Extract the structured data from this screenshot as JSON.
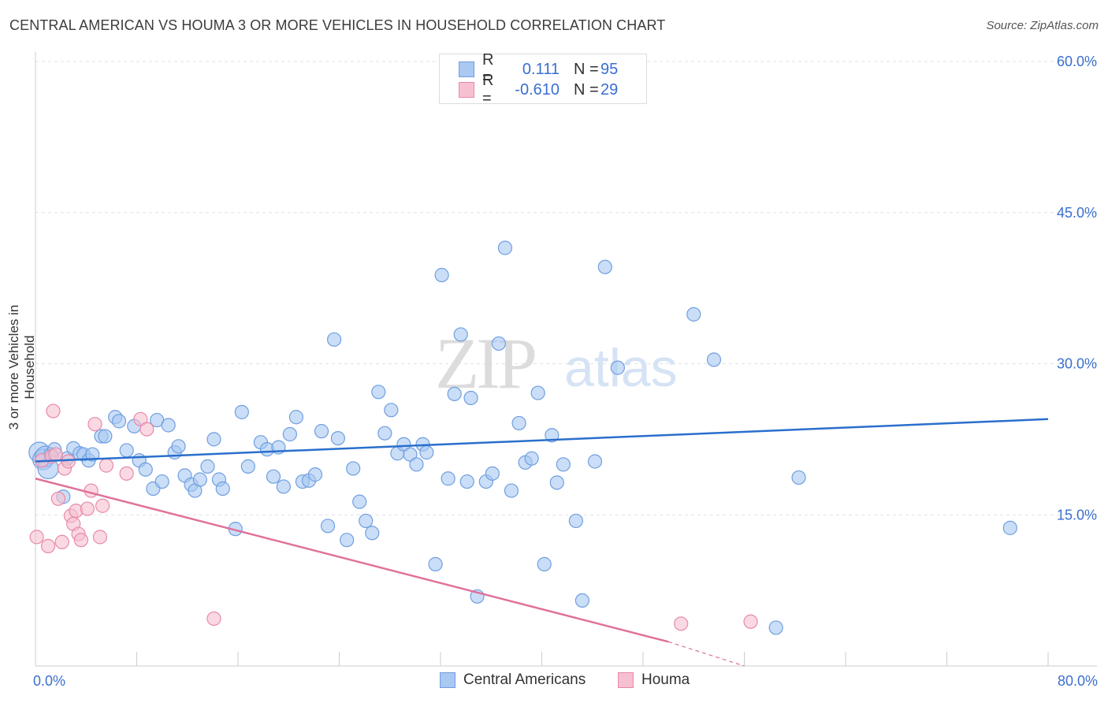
{
  "title": "CENTRAL AMERICAN VS HOUMA 3 OR MORE VEHICLES IN HOUSEHOLD CORRELATION CHART",
  "source": "Source: ZipAtlas.com",
  "watermark": {
    "zip": "ZIP",
    "atlas": "atlas"
  },
  "legend_top": {
    "rows": [
      {
        "r_label": "R =",
        "r_value": "0.111",
        "n_label": "N =",
        "n_value": "95",
        "color": "#a9c8f2",
        "border": "#6f9fe0"
      },
      {
        "r_label": "R =",
        "r_value": "-0.610",
        "n_label": "N =",
        "n_value": "29",
        "color": "#f7c0d0",
        "border": "#e889a8"
      }
    ]
  },
  "legend_bottom": {
    "items": [
      {
        "label": "Central Americans",
        "color": "#a9c8f2",
        "border": "#6f9fe0"
      },
      {
        "label": "Houma",
        "color": "#f7c0d0",
        "border": "#e889a8"
      }
    ]
  },
  "chart_data": {
    "type": "scatter",
    "title": "CENTRAL AMERICAN VS HOUMA 3 OR MORE VEHICLES IN HOUSEHOLD CORRELATION CHART",
    "xlabel": "",
    "ylabel": "3 or more Vehicles in Household",
    "xlim": [
      0,
      80
    ],
    "ylim": [
      0,
      60
    ],
    "x_tick_labels": [
      "0.0%",
      "80.0%"
    ],
    "y_tick_labels": [
      "15.0%",
      "30.0%",
      "45.0%",
      "60.0%"
    ],
    "y_ticks": [
      15,
      30,
      45,
      60
    ],
    "grid": true,
    "colors": {
      "blue": "#6f9fe0",
      "blue_fill": "#a9c8f2",
      "blue_line": "#2a6fcc",
      "pink": "#e889a8",
      "pink_fill": "#f7c0d0",
      "pink_line": "#e0709a",
      "tick_label": "#3a6fcf"
    },
    "series": [
      {
        "name": "Central Americans",
        "points": [
          [
            0.3,
            21.2
          ],
          [
            0.6,
            20.5
          ],
          [
            0.8,
            20.8
          ],
          [
            1.0,
            19.6
          ],
          [
            1.2,
            21.0
          ],
          [
            1.5,
            21.5
          ],
          [
            2.2,
            16.8
          ],
          [
            2.5,
            20.6
          ],
          [
            3.0,
            21.6
          ],
          [
            3.5,
            21.1
          ],
          [
            3.8,
            21.0
          ],
          [
            4.2,
            20.4
          ],
          [
            4.5,
            21.0
          ],
          [
            5.2,
            22.8
          ],
          [
            5.5,
            22.8
          ],
          [
            6.3,
            24.7
          ],
          [
            6.6,
            24.3
          ],
          [
            7.2,
            21.4
          ],
          [
            7.8,
            23.8
          ],
          [
            8.2,
            20.4
          ],
          [
            8.7,
            19.5
          ],
          [
            9.3,
            17.6
          ],
          [
            9.6,
            24.4
          ],
          [
            10.0,
            18.3
          ],
          [
            10.5,
            23.9
          ],
          [
            11.0,
            21.2
          ],
          [
            11.3,
            21.8
          ],
          [
            11.8,
            18.9
          ],
          [
            12.3,
            18.0
          ],
          [
            12.6,
            17.4
          ],
          [
            13.0,
            18.5
          ],
          [
            13.6,
            19.8
          ],
          [
            14.1,
            22.5
          ],
          [
            14.5,
            18.5
          ],
          [
            14.8,
            17.6
          ],
          [
            15.8,
            13.6
          ],
          [
            16.3,
            25.2
          ],
          [
            16.8,
            19.8
          ],
          [
            17.8,
            22.2
          ],
          [
            18.3,
            21.5
          ],
          [
            18.8,
            18.8
          ],
          [
            19.2,
            21.7
          ],
          [
            19.6,
            17.8
          ],
          [
            20.1,
            23.0
          ],
          [
            20.6,
            24.7
          ],
          [
            21.1,
            18.3
          ],
          [
            21.6,
            18.4
          ],
          [
            22.1,
            19.0
          ],
          [
            22.6,
            23.3
          ],
          [
            23.1,
            13.9
          ],
          [
            23.6,
            32.4
          ],
          [
            23.9,
            22.6
          ],
          [
            24.6,
            12.5
          ],
          [
            25.1,
            19.6
          ],
          [
            25.6,
            16.3
          ],
          [
            26.1,
            14.4
          ],
          [
            26.6,
            13.2
          ],
          [
            27.1,
            27.2
          ],
          [
            27.6,
            23.1
          ],
          [
            28.1,
            25.4
          ],
          [
            28.6,
            21.1
          ],
          [
            29.1,
            22.0
          ],
          [
            29.6,
            21.0
          ],
          [
            30.1,
            20.0
          ],
          [
            30.6,
            22.0
          ],
          [
            30.9,
            21.2
          ],
          [
            31.6,
            10.1
          ],
          [
            32.1,
            38.8
          ],
          [
            32.6,
            18.6
          ],
          [
            33.1,
            27.0
          ],
          [
            33.6,
            32.9
          ],
          [
            34.1,
            18.3
          ],
          [
            34.4,
            26.6
          ],
          [
            34.9,
            6.9
          ],
          [
            35.6,
            18.3
          ],
          [
            36.1,
            19.1
          ],
          [
            36.6,
            32.0
          ],
          [
            37.1,
            41.5
          ],
          [
            37.6,
            17.4
          ],
          [
            38.2,
            24.1
          ],
          [
            38.7,
            20.2
          ],
          [
            39.2,
            20.6
          ],
          [
            39.7,
            27.1
          ],
          [
            40.2,
            10.1
          ],
          [
            40.8,
            22.9
          ],
          [
            41.2,
            18.2
          ],
          [
            41.7,
            20.0
          ],
          [
            42.7,
            14.4
          ],
          [
            43.2,
            6.5
          ],
          [
            44.2,
            20.3
          ],
          [
            45.0,
            39.6
          ],
          [
            46.0,
            29.6
          ],
          [
            52.0,
            34.9
          ],
          [
            53.6,
            30.4
          ],
          [
            58.5,
            3.8
          ],
          [
            60.3,
            18.7
          ],
          [
            77.0,
            13.7
          ]
        ]
      },
      {
        "name": "Houma",
        "points": [
          [
            0.1,
            12.8
          ],
          [
            0.5,
            20.4
          ],
          [
            1.0,
            11.9
          ],
          [
            1.3,
            20.8
          ],
          [
            1.4,
            25.3
          ],
          [
            1.6,
            21.0
          ],
          [
            1.8,
            16.6
          ],
          [
            2.1,
            12.3
          ],
          [
            2.3,
            19.6
          ],
          [
            2.6,
            20.3
          ],
          [
            2.8,
            14.9
          ],
          [
            3.0,
            14.1
          ],
          [
            3.2,
            15.4
          ],
          [
            3.4,
            13.1
          ],
          [
            3.6,
            12.5
          ],
          [
            4.1,
            15.6
          ],
          [
            4.4,
            17.4
          ],
          [
            4.7,
            24.0
          ],
          [
            5.1,
            12.8
          ],
          [
            5.3,
            15.9
          ],
          [
            5.6,
            19.9
          ],
          [
            7.2,
            19.1
          ],
          [
            8.3,
            24.5
          ],
          [
            8.8,
            23.5
          ],
          [
            14.1,
            4.7
          ],
          [
            51.0,
            4.2
          ],
          [
            56.5,
            4.4
          ]
        ]
      }
    ],
    "trendlines": [
      {
        "name": "Central Americans",
        "x": [
          0,
          80
        ],
        "y": [
          20.3,
          24.5
        ]
      },
      {
        "name": "Houma",
        "x": [
          0,
          50
        ],
        "y": [
          18.6,
          2.4
        ],
        "dashed_to": [
          56,
          0
        ]
      }
    ]
  }
}
